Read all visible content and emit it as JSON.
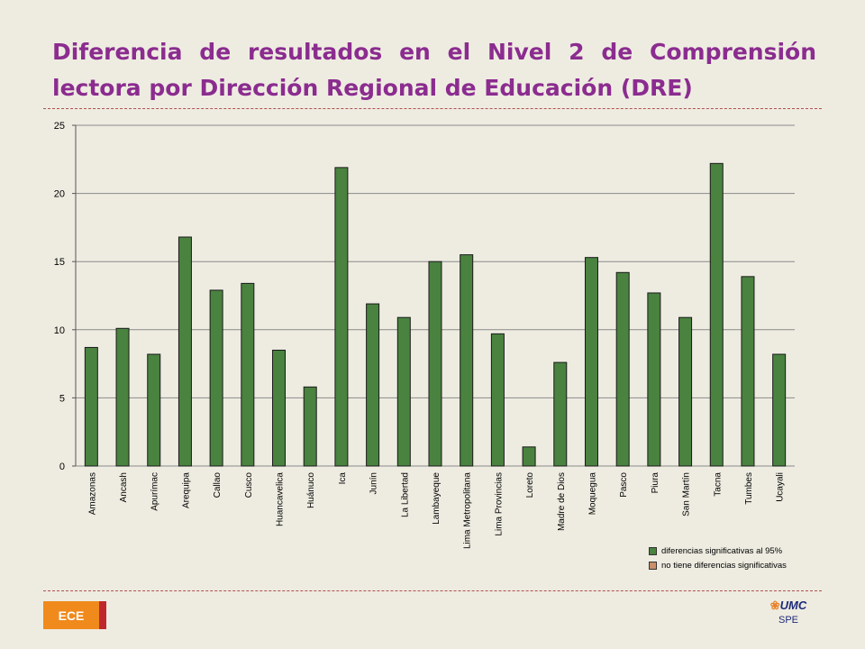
{
  "slide": {
    "title": "Diferencia de resultados en el Nivel 2 de Comprensión lectora por Dirección Regional de Educación (DRE)",
    "badge_label": "ECE",
    "logo_text": "UMC",
    "logo_sub": "SPE"
  },
  "colors": {
    "bar_significant": "#4a8240",
    "bar_not_significant": "#c8906a",
    "title": "#8b2c8f"
  },
  "legend": [
    {
      "label": "diferencias significativas al 95%",
      "color": "#4a8240"
    },
    {
      "label": "no tiene diferencias significativas",
      "color": "#c8906a"
    }
  ],
  "chart_data": {
    "type": "bar",
    "title": "",
    "xlabel": "",
    "ylabel": "",
    "ylim": [
      0,
      25
    ],
    "yticks": [
      0,
      5,
      10,
      15,
      20,
      25
    ],
    "grid": true,
    "legend_position": "bottom-right",
    "categories": [
      "Amazonas",
      "Ancash",
      "Apurímac",
      "Arequipa",
      "Callao",
      "Cusco",
      "Huancavelica",
      "Huánuco",
      "Ica",
      "Junín",
      "La Libertad",
      "Lambayeque",
      "Lima Metropolitana",
      "Lima Provincias",
      "Loreto",
      "Madre de Dios",
      "Moquegua",
      "Pasco",
      "Piura",
      "San Martín",
      "Tacna",
      "Tumbes",
      "Ucayali"
    ],
    "series": [
      {
        "name": "diferencias significativas al 95%",
        "values": [
          8.7,
          10.1,
          8.2,
          16.8,
          12.9,
          13.4,
          8.5,
          5.8,
          21.9,
          11.9,
          10.9,
          15.0,
          15.5,
          9.7,
          1.4,
          7.6,
          15.3,
          14.2,
          12.7,
          10.9,
          22.2,
          13.9,
          8.2
        ]
      }
    ]
  }
}
